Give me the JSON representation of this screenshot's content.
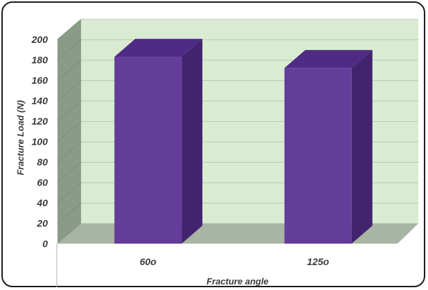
{
  "chart_data": {
    "type": "bar",
    "categories": [
      "60o",
      "125o"
    ],
    "values": [
      183,
      172
    ],
    "xlabel": "Fracture angle",
    "ylabel": "Fracture Load (N)",
    "ylim": [
      0,
      200
    ],
    "yticks": [
      0,
      20,
      40,
      60,
      80,
      100,
      120,
      140,
      160,
      180,
      200
    ],
    "grid": true,
    "style": "3d",
    "colors": {
      "bar": "#643c9a",
      "bar_top": "#4f2b86",
      "bar_side": "#42246e",
      "back_wall": "#d9ecd2",
      "side_wall": "#8a9c88",
      "floor": "#a8b5a4"
    }
  }
}
